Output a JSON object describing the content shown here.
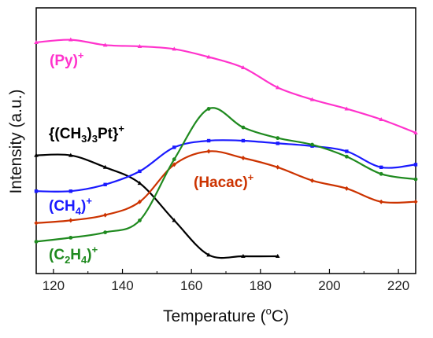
{
  "chart_data": {
    "type": "line",
    "xlabel": "Temperature (°C)",
    "ylabel": "Intensity (a.u.)",
    "xlim": [
      115,
      225
    ],
    "ylim": [
      0,
      100
    ],
    "x_ticks": [
      120,
      140,
      160,
      180,
      200,
      220
    ],
    "y_ticks_shown": false,
    "grid": false,
    "legend": "none",
    "series": [
      {
        "name": "(Py)+",
        "color": "#ff33cc",
        "x": [
          115,
          125,
          135,
          145,
          155,
          165,
          175,
          185,
          195,
          205,
          215,
          225
        ],
        "y": [
          87,
          88,
          86,
          85.5,
          84.5,
          81.5,
          77.5,
          70,
          65.5,
          62,
          58,
          53
        ]
      },
      {
        "name": "{(CH3)3Pt}+",
        "color": "#000000",
        "x": [
          115,
          125,
          135,
          145,
          155,
          165,
          175,
          185
        ],
        "y": [
          44.5,
          44.5,
          40,
          34,
          20,
          7,
          6.5,
          6.5
        ]
      },
      {
        "name": "(CH4)+",
        "color": "#1a1aff",
        "x": [
          115,
          125,
          135,
          145,
          155,
          165,
          175,
          185,
          195,
          205,
          215,
          225
        ],
        "y": [
          31,
          31,
          33.5,
          38.5,
          47.5,
          50,
          50,
          49,
          48,
          46,
          40,
          41
        ]
      },
      {
        "name": "(Hacac)+",
        "color": "#cc3300",
        "x": [
          115,
          125,
          135,
          145,
          155,
          165,
          175,
          185,
          195,
          205,
          215,
          225
        ],
        "y": [
          19,
          20,
          22,
          27,
          41,
          46,
          43.5,
          40,
          35,
          32,
          27,
          27
        ]
      },
      {
        "name": "(C2H4)+",
        "color": "#1f8a1f",
        "x": [
          115,
          125,
          135,
          145,
          155,
          165,
          175,
          185,
          195,
          205,
          215,
          225
        ],
        "y": [
          12,
          13.5,
          15.5,
          20,
          43,
          62,
          55,
          51,
          48.5,
          44,
          37.5,
          35.5
        ]
      }
    ]
  },
  "labels": {
    "py_main": "(Py)",
    "py_sup": "+",
    "pt_a": "{(CH",
    "pt_sub1": "3",
    "pt_b": ")",
    "pt_sub2": "3",
    "pt_c": "Pt}",
    "pt_sup": "+",
    "ch4_a": "(CH",
    "ch4_sub": "4",
    "ch4_b": ")",
    "ch4_sup": "+",
    "hacac_main": "(Hacac)",
    "hacac_sup": "+",
    "c2h4_a": "(C",
    "c2h4_sub1": "2",
    "c2h4_b": "H",
    "c2h4_sub2": "4",
    "c2h4_c": ")",
    "c2h4_sup": "+"
  },
  "axes": {
    "xlabel_main": "Temperature (",
    "xlabel_sup": "o",
    "xlabel_end": "C)",
    "ylabel": "Intensity (a.u.)"
  }
}
